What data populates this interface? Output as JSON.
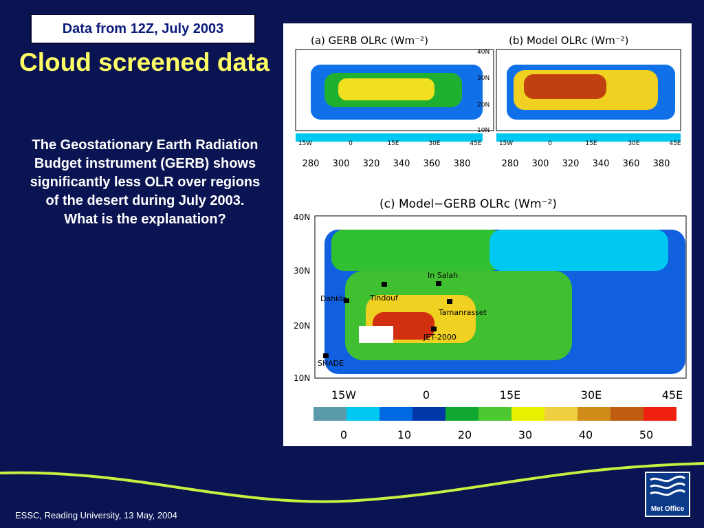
{
  "slide": {
    "date_box": "Data from 12Z, July 2003",
    "title": "Cloud screened data",
    "body": "The Geostationary Earth Radiation Budget instrument (GERB) shows significantly less OLR over regions of the desert during July 2003. What is the explanation?",
    "footer": "ESSC, Reading University, 13 May, 2004",
    "logo_text": "Met Office"
  },
  "figure": {
    "panel_a": {
      "title": "(a)  GERB  OLRc  (Wm⁻²)",
      "lon_labels": [
        "15W",
        "0",
        "15E",
        "30E",
        "45E"
      ],
      "colorbar_labels": [
        "280",
        "300",
        "320",
        "340",
        "360",
        "380"
      ]
    },
    "panel_b": {
      "title": "(b)  Model  OLRc  (Wm⁻²)",
      "lat_labels": [
        "40N",
        "30N",
        "20N",
        "10N"
      ],
      "lon_labels": [
        "15W",
        "0",
        "15E",
        "30E",
        "45E"
      ],
      "colorbar_labels": [
        "280",
        "300",
        "320",
        "340",
        "360",
        "380"
      ]
    },
    "panel_c": {
      "title": "(c)  Model−GERB  OLRc  (Wm⁻²)",
      "lat_labels": [
        "40N",
        "30N",
        "20N",
        "10N"
      ],
      "lon_labels": [
        "15W",
        "0",
        "15E",
        "30E",
        "45E"
      ],
      "colorbar_labels": [
        "0",
        "10",
        "20",
        "30",
        "40",
        "50"
      ],
      "stations": [
        "In Salah",
        "Tindouf",
        "Dahkla",
        "Tamanrasset",
        "JET-2000",
        "SHADE"
      ]
    },
    "colorbar_colors": [
      "#5b9aa8",
      "#00c8f0",
      "#0068e0",
      "#0038a8",
      "#10a830",
      "#4cc830",
      "#e8f000",
      "#f0d040",
      "#d08c18",
      "#c05c10",
      "#f02010"
    ]
  }
}
